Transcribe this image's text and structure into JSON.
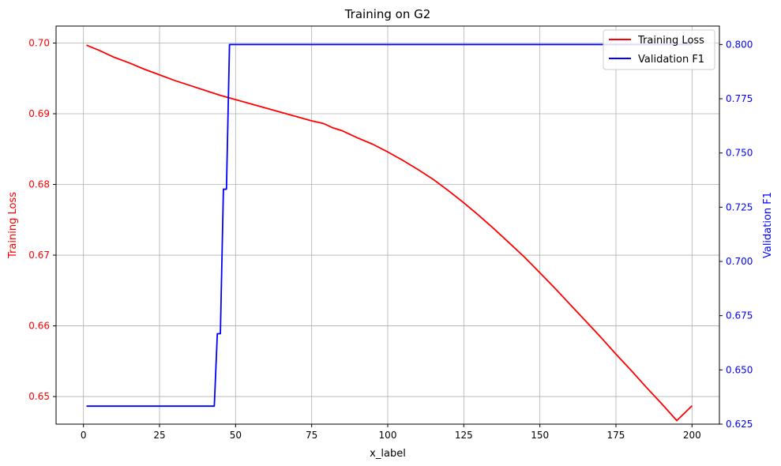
{
  "chart_data": {
    "type": "line",
    "title": "Training on G2",
    "xlabel": "x_label",
    "xlim": [
      -9,
      209
    ],
    "xticks": [
      0,
      25,
      50,
      75,
      100,
      125,
      150,
      175,
      200
    ],
    "grid": true,
    "legend": {
      "position": "top-right",
      "entries": [
        "Training Loss",
        "Validation F1"
      ]
    },
    "left_axis": {
      "label": "Training Loss",
      "color": "#ff0000",
      "ylim": [
        0.6461,
        0.7024
      ],
      "ticks": [
        0.65,
        0.66,
        0.67,
        0.68,
        0.69,
        0.7
      ],
      "tick_labels": [
        "0.65",
        "0.66",
        "0.67",
        "0.68",
        "0.69",
        "0.70"
      ]
    },
    "right_axis": {
      "label": "Validation F1",
      "color": "#0000ff",
      "ylim": [
        0.625,
        0.8085
      ],
      "ticks": [
        0.625,
        0.65,
        0.675,
        0.7,
        0.725,
        0.75,
        0.775,
        0.8
      ],
      "tick_labels": [
        "0.625",
        "0.650",
        "0.675",
        "0.700",
        "0.725",
        "0.750",
        "0.775",
        "0.800"
      ]
    },
    "series": [
      {
        "name": "Training Loss",
        "axis": "left",
        "color": "#ff0000",
        "x": [
          1,
          5,
          10,
          15,
          20,
          25,
          30,
          35,
          40,
          45,
          50,
          55,
          60,
          65,
          70,
          75,
          79,
          80,
          82,
          85,
          87,
          90,
          95,
          100,
          105,
          110,
          115,
          120,
          125,
          130,
          135,
          140,
          145,
          150,
          155,
          160,
          165,
          170,
          175,
          180,
          185,
          190,
          195,
          200
        ],
        "y": [
          0.6997,
          0.699,
          0.698,
          0.6972,
          0.6963,
          0.6955,
          0.6947,
          0.694,
          0.6933,
          0.6926,
          0.692,
          0.6914,
          0.6908,
          0.6902,
          0.6896,
          0.689,
          0.6886,
          0.6884,
          0.688,
          0.6876,
          0.6872,
          0.6866,
          0.6857,
          0.6846,
          0.6834,
          0.6821,
          0.6807,
          0.6791,
          0.6774,
          0.6756,
          0.6737,
          0.6717,
          0.6697,
          0.6675,
          0.6653,
          0.663,
          0.6607,
          0.6584,
          0.656,
          0.6537,
          0.6513,
          0.649,
          0.6466,
          0.6487
        ]
      },
      {
        "name": "Validation F1",
        "axis": "right",
        "color": "#0000ff",
        "x": [
          1,
          43,
          44,
          45,
          46,
          47,
          48,
          48.5,
          200
        ],
        "y": [
          0.6333,
          0.6333,
          0.6667,
          0.6667,
          0.7333,
          0.7333,
          0.8,
          0.8,
          0.8
        ]
      }
    ]
  }
}
